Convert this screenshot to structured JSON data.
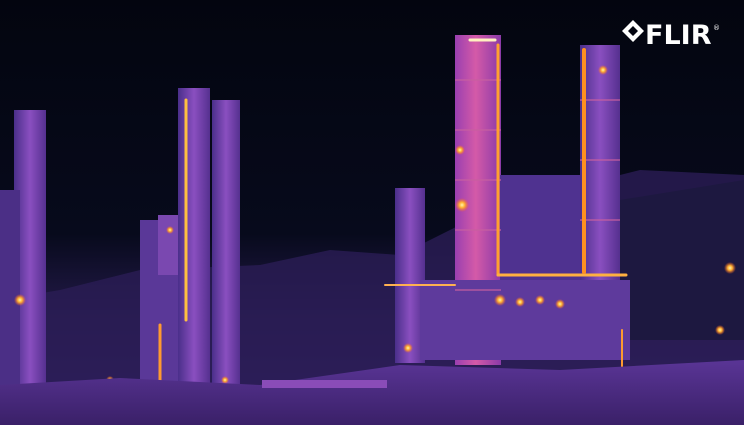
{
  "logo": {
    "text": "FLIR",
    "mark": "®"
  }
}
